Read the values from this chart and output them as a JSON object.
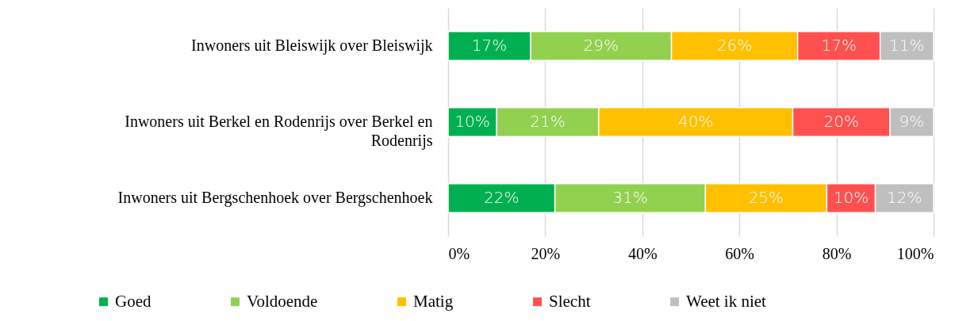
{
  "chart_data": {
    "type": "bar",
    "orientation": "horizontal",
    "stacked": true,
    "categories": [
      "Inwoners uit Bleiswijk over Bleiswijk",
      "Inwoners uit Berkel en Rodenrijs over Berkel en Rodenrijs",
      "Inwoners uit Bergschenhoek over Bergschenhoek"
    ],
    "series": [
      {
        "name": "Goed",
        "color": "#00b050",
        "values": [
          17,
          10,
          22
        ],
        "value_labels": [
          "17%",
          "10%",
          "22%"
        ]
      },
      {
        "name": "Voldoende",
        "color": "#92d050",
        "values": [
          29,
          21,
          31
        ],
        "value_labels": [
          "29%",
          "21%",
          "31%"
        ]
      },
      {
        "name": "Matig",
        "color": "#ffc000",
        "values": [
          26,
          40,
          25
        ],
        "value_labels": [
          "26%",
          "40%",
          "25%"
        ]
      },
      {
        "name": "Slecht",
        "color": "#ff5050",
        "values": [
          17,
          20,
          10
        ],
        "value_labels": [
          "17%",
          "20%",
          "10%"
        ]
      },
      {
        "name": "Weet ik niet",
        "color": "#bfbfbf",
        "values": [
          11,
          9,
          12
        ],
        "value_labels": [
          "11%",
          "9%",
          "12%"
        ]
      }
    ],
    "xlim": [
      0,
      100
    ],
    "xticks": [
      {
        "value": 0,
        "label": "0%"
      },
      {
        "value": 20,
        "label": "20%"
      },
      {
        "value": 40,
        "label": "40%"
      },
      {
        "value": 60,
        "label": "60%"
      },
      {
        "value": 80,
        "label": "80%"
      },
      {
        "value": 100,
        "label": "100%"
      }
    ],
    "grid": "x",
    "legend": "bottom"
  }
}
